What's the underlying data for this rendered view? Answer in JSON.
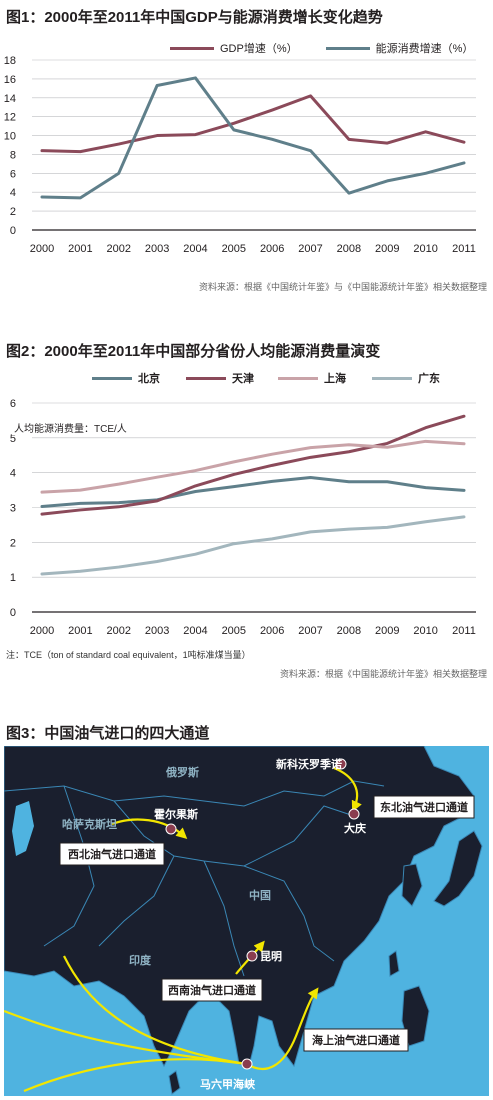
{
  "fig1": {
    "title": "图1：2000年至2011年中国GDP与能源消费增长变化趋势",
    "source": "资料来源：根据《中国统计年鉴》与《中国能源统计年鉴》相关数据整理",
    "legend": [
      "GDP增速（%）",
      "能源消费增速（%）"
    ]
  },
  "fig2": {
    "title": "图2：2000年至2011年中国部分省份人均能源消费量演变",
    "unit_label": "人均能源消费量：TCE/人",
    "note": "注：TCE（ton of standard coal equivalent，1吨标准煤当量）",
    "source": "资料来源：根据《中国能源统计年鉴》相关数据整理",
    "legend": [
      "北京",
      "天津",
      "上海",
      "广东"
    ]
  },
  "fig3": {
    "title": "图3：中国油气进口的四大通道",
    "labels": {
      "russia": "俄罗斯",
      "kazakhstan": "哈萨克斯坦",
      "china": "中国",
      "india": "印度",
      "novosibirsk": "新科沃罗季诺",
      "daqing": "大庆",
      "khorgos": "霍尔果斯",
      "kunming": "昆明",
      "malacca": "马六甲海峡",
      "northeast_route": "东北油气进口通道",
      "northwest_route": "西北油气进口通道",
      "southwest_route": "西南油气进口通道",
      "sea_route": "海上油气进口通道"
    },
    "colors": {
      "land": "#1a1f2e",
      "sea": "#4fb3e0",
      "route": "#f2e600",
      "node": "#8a3d4f"
    }
  },
  "chart_data": [
    {
      "type": "line",
      "categories": [
        "2000",
        "2001",
        "2002",
        "2003",
        "2004",
        "2005",
        "2006",
        "2007",
        "2008",
        "2009",
        "2010",
        "2011"
      ],
      "series": [
        {
          "name": "GDP增速（%）",
          "color": "#8b4a5a",
          "values": [
            8.4,
            8.3,
            9.1,
            10.0,
            10.1,
            11.3,
            12.7,
            14.2,
            9.6,
            9.2,
            10.4,
            9.3
          ]
        },
        {
          "name": "能源消费增速（%）",
          "color": "#5f7f8a",
          "values": [
            3.5,
            3.4,
            6.0,
            15.3,
            16.1,
            10.6,
            9.6,
            8.4,
            3.9,
            5.2,
            6.0,
            7.1
          ]
        }
      ],
      "ylim": [
        0,
        18
      ],
      "yticks": [
        0,
        2,
        4,
        6,
        8,
        10,
        12,
        14,
        16,
        18
      ],
      "grid": true,
      "legend_position": "top-right"
    },
    {
      "type": "line",
      "categories": [
        "2000",
        "2001",
        "2002",
        "2003",
        "2004",
        "2005",
        "2006",
        "2007",
        "2008",
        "2009",
        "2010",
        "2011"
      ],
      "series": [
        {
          "name": "北京",
          "color": "#5f7f8a",
          "values": [
            3.03,
            3.12,
            3.14,
            3.22,
            3.46,
            3.6,
            3.75,
            3.86,
            3.74,
            3.74,
            3.57,
            3.49
          ]
        },
        {
          "name": "天津",
          "color": "#8b4a5a",
          "values": [
            2.81,
            2.93,
            3.02,
            3.19,
            3.62,
            3.95,
            4.21,
            4.44,
            4.6,
            4.84,
            5.29,
            5.62
          ]
        },
        {
          "name": "上海",
          "color": "#c9a3a8",
          "values": [
            3.44,
            3.5,
            3.67,
            3.87,
            4.06,
            4.31,
            4.53,
            4.72,
            4.8,
            4.73,
            4.9,
            4.83
          ]
        },
        {
          "name": "广东",
          "color": "#a3b6bd",
          "values": [
            1.09,
            1.17,
            1.29,
            1.45,
            1.66,
            1.96,
            2.1,
            2.3,
            2.38,
            2.43,
            2.59,
            2.73
          ]
        }
      ],
      "ylim": [
        0,
        6
      ],
      "yticks": [
        0,
        1,
        2,
        3,
        4,
        5,
        6
      ],
      "grid": true,
      "legend_position": "top"
    }
  ]
}
